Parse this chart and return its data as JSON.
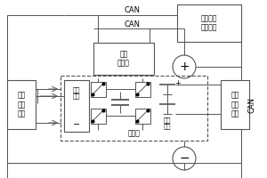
{
  "fig_width": 3.0,
  "fig_height": 2.0,
  "dpi": 100,
  "bg": "#ffffff",
  "lc": "#555555",
  "lw": 0.7,
  "texts": {
    "can1": "CAN",
    "can2": "CAN",
    "can3": "CAN",
    "mgmt": "复合电源\n管理系统",
    "sw_ctrl": "开关\n控制器",
    "supercap": "超级\n电容",
    "pump": "电荷泵",
    "battery": "动力\n电池",
    "s1": "第一\n采样\n装置",
    "s2": "第二\n采样\n装置",
    "plus": "+",
    "minus": "−"
  },
  "fs": 5.5,
  "fs_pm": 9
}
